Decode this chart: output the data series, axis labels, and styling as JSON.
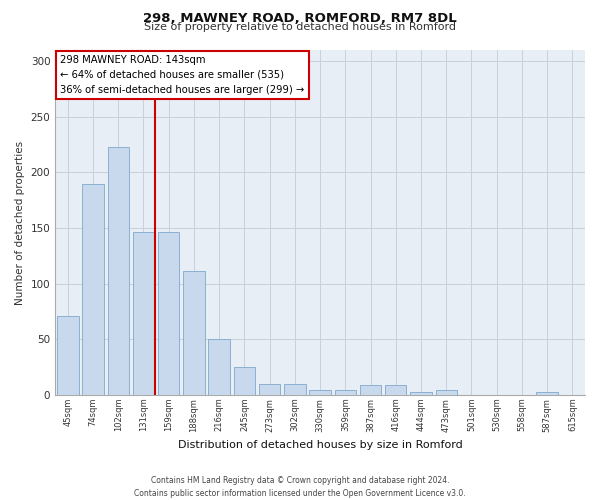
{
  "title_line1": "298, MAWNEY ROAD, ROMFORD, RM7 8DL",
  "title_line2": "Size of property relative to detached houses in Romford",
  "xlabel": "Distribution of detached houses by size in Romford",
  "ylabel": "Number of detached properties",
  "categories": [
    "45sqm",
    "74sqm",
    "102sqm",
    "131sqm",
    "159sqm",
    "188sqm",
    "216sqm",
    "245sqm",
    "273sqm",
    "302sqm",
    "330sqm",
    "359sqm",
    "387sqm",
    "416sqm",
    "444sqm",
    "473sqm",
    "501sqm",
    "530sqm",
    "558sqm",
    "587sqm",
    "615sqm"
  ],
  "values": [
    71,
    190,
    223,
    146,
    146,
    111,
    50,
    25,
    10,
    10,
    4,
    4,
    9,
    9,
    3,
    4,
    0,
    0,
    0,
    3,
    0
  ],
  "bar_color": "#c9d9ed",
  "bar_edge_color": "#7fa8cc",
  "annotation_text_line1": "298 MAWNEY ROAD: 143sqm",
  "annotation_text_line2": "← 64% of detached houses are smaller (535)",
  "annotation_text_line3": "36% of semi-detached houses are larger (299) →",
  "annotation_box_color": "#ffffff",
  "annotation_box_edge": "#cc0000",
  "vline_color": "#cc0000",
  "vline_x": 3.46,
  "ylim": [
    0,
    310
  ],
  "yticks": [
    0,
    50,
    100,
    150,
    200,
    250,
    300
  ],
  "grid_color": "#c8d0dc",
  "bg_color": "#e8eef5",
  "footer_line1": "Contains HM Land Registry data © Crown copyright and database right 2024.",
  "footer_line2": "Contains public sector information licensed under the Open Government Licence v3.0."
}
